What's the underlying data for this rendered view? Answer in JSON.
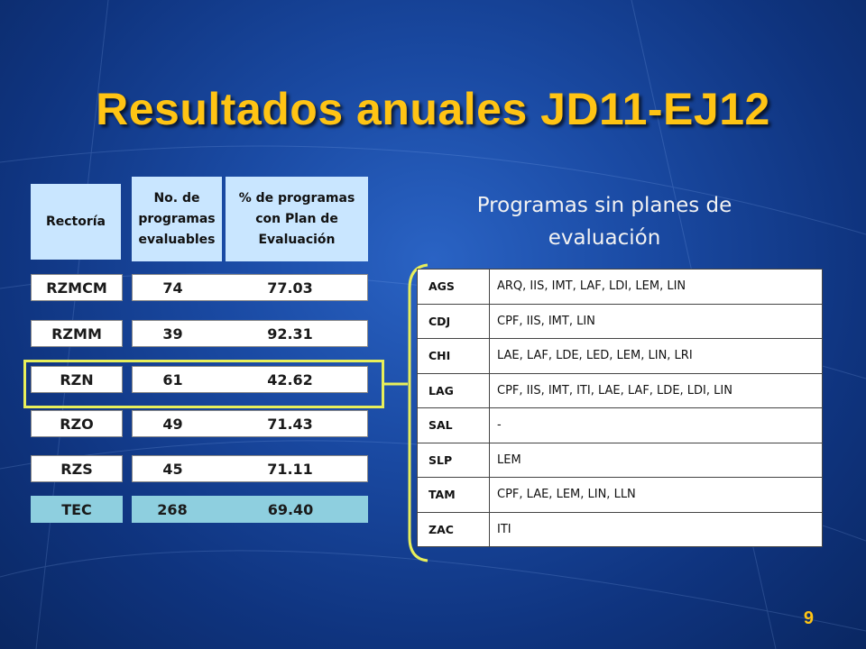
{
  "slide": {
    "title": "Resultados anuales JD11-EJ12",
    "page_number": "9"
  },
  "left_table": {
    "headers": {
      "rectoria": "Rectoría",
      "programas": "No. de programas evaluables",
      "porcentaje": "% de programas con Plan de Evaluación"
    },
    "rows": [
      {
        "name": "RZMCM",
        "count": "74",
        "pct": "77.03"
      },
      {
        "name": "RZMM",
        "count": "39",
        "pct": "92.31"
      },
      {
        "name": "RZN",
        "count": "61",
        "pct": "42.62"
      },
      {
        "name": "RZO",
        "count": "49",
        "pct": "71.43"
      },
      {
        "name": "RZS",
        "count": "45",
        "pct": "71.11"
      },
      {
        "name": "TEC",
        "count": "268",
        "pct": "69.40"
      }
    ]
  },
  "right_section": {
    "subtitle": "Programas sin planes de evaluación",
    "rows": [
      {
        "code": "AGS",
        "programs": "ARQ, IIS, IMT, LAF, LDI, LEM, LIN"
      },
      {
        "code": "CDJ",
        "programs": "CPF, IIS, IMT, LIN"
      },
      {
        "code": "CHI",
        "programs": "LAE, LAF, LDE, LED, LEM, LIN, LRI"
      },
      {
        "code": "LAG",
        "programs": "CPF, IIS, IMT, ITI, LAE, LAF, LDE, LDI, LIN"
      },
      {
        "code": "SAL",
        "programs": "-"
      },
      {
        "code": "SLP",
        "programs": "LEM"
      },
      {
        "code": "TAM",
        "programs": "CPF, LAE, LEM, LIN, LLN"
      },
      {
        "code": "ZAC",
        "programs": "ITI"
      }
    ]
  },
  "colors": {
    "title": "#ffc414",
    "highlight": "#e8ef5a",
    "header_bg": "#c9e6ff",
    "total_bg": "#8ecfdf"
  }
}
